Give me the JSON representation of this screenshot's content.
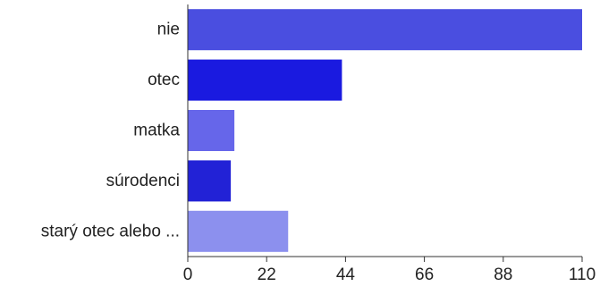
{
  "chart_data": {
    "type": "bar",
    "orientation": "horizontal",
    "categories": [
      "nie",
      "otec",
      "matka",
      "súrodenci",
      "starý otec alebo ..."
    ],
    "values": [
      110,
      43,
      13,
      12,
      28
    ],
    "colors": [
      "#4a4ee0",
      "#1a1ae0",
      "#6666ea",
      "#2222d6",
      "#8c90ee"
    ],
    "xticks": [
      0,
      22,
      44,
      66,
      88,
      110
    ],
    "xlim": [
      0,
      110
    ],
    "title": "",
    "xlabel": "",
    "ylabel": "",
    "grid": false,
    "legend": "none"
  }
}
